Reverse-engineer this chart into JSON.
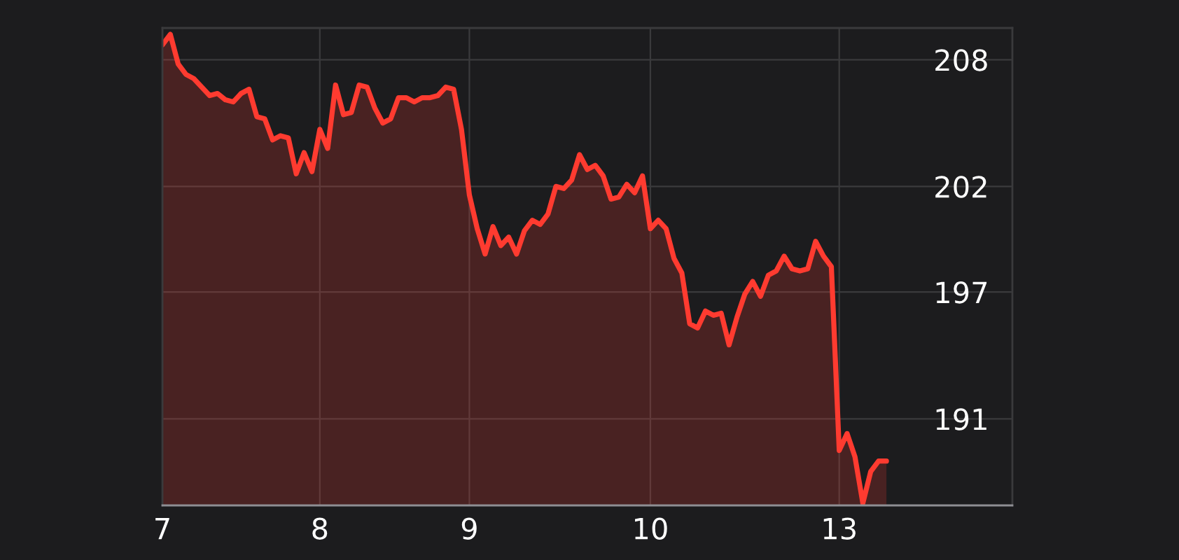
{
  "chart_data": {
    "type": "area",
    "categories": [
      "7",
      null,
      null,
      null,
      null,
      null,
      null,
      null,
      null,
      null,
      null,
      null,
      null,
      null,
      null,
      null,
      null,
      null,
      null,
      null,
      "8",
      null,
      null,
      null,
      null,
      null,
      null,
      null,
      null,
      null,
      null,
      null,
      null,
      null,
      null,
      null,
      null,
      null,
      null,
      "9",
      null,
      null,
      null,
      null,
      null,
      null,
      null,
      null,
      null,
      null,
      null,
      null,
      null,
      null,
      null,
      null,
      null,
      null,
      null,
      null,
      null,
      null,
      "10",
      null,
      null,
      null,
      null,
      null,
      null,
      null,
      null,
      null,
      null,
      null,
      null,
      null,
      null,
      null,
      null,
      null,
      null,
      null,
      null,
      null,
      null,
      null,
      "13",
      null,
      null,
      null,
      null,
      null,
      null,
      null,
      null,
      null,
      null,
      null,
      null,
      null,
      null,
      null,
      null,
      null,
      null,
      null,
      null,
      null,
      null
    ],
    "series": [
      {
        "color": "#ff3b30",
        "values": [
          208.7,
          209.2,
          207.8,
          207.3,
          207.1,
          206.7,
          206.3,
          206.4,
          206.1,
          206.0,
          206.4,
          206.6,
          205.3,
          205.2,
          204.2,
          204.4,
          204.3,
          202.6,
          203.6,
          202.7,
          204.7,
          203.8,
          206.8,
          205.4,
          205.5,
          206.8,
          206.7,
          205.7,
          205.0,
          205.2,
          206.2,
          206.2,
          206.0,
          206.2,
          206.2,
          206.3,
          206.7,
          206.6,
          204.7,
          201.6,
          200.0,
          198.8,
          200.1,
          199.2,
          199.6,
          198.8,
          199.9,
          200.4,
          200.2,
          200.7,
          202.0,
          201.9,
          202.3,
          203.5,
          202.8,
          203.0,
          202.5,
          201.4,
          201.5,
          202.1,
          201.7,
          202.5,
          200.0,
          200.4,
          200.0,
          198.6,
          197.9,
          195.5,
          195.3,
          196.1,
          195.9,
          196.0,
          194.5,
          195.8,
          196.9,
          197.5,
          196.8,
          197.8,
          198.0,
          198.7,
          198.1,
          198.0,
          198.1,
          199.4,
          198.7,
          198.2,
          189.5,
          190.3,
          189.2,
          187.0,
          188.5,
          189.0,
          189.0,
          null,
          null,
          null,
          null,
          null,
          null,
          null,
          null,
          null,
          null,
          null,
          null,
          null,
          null,
          null,
          null
        ]
      }
    ],
    "ylim": [
      186.9,
      209.5
    ],
    "yticks": [
      208,
      202,
      197,
      191
    ],
    "grid": true,
    "legend": false
  }
}
